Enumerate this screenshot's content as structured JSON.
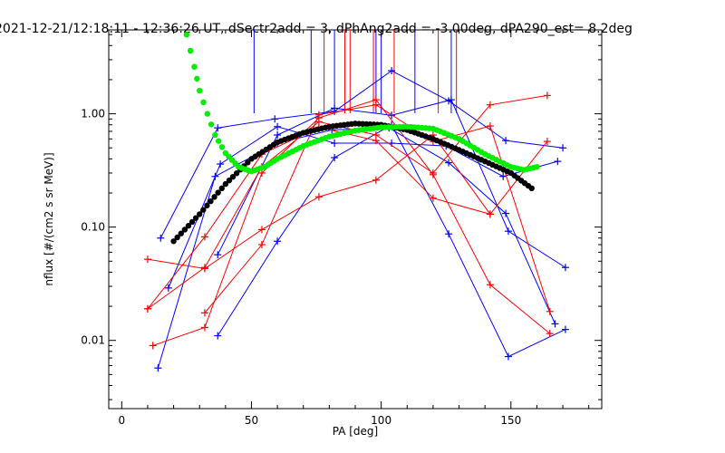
{
  "chart_data": {
    "type": "scatter",
    "title": "2021-12-21/12:18:11 - 12:36:26 UT, dSectr2add = 3, dPhAng2add = -3.00deg, dPA290_est=   8.2deg",
    "xlabel": "PA [deg]",
    "ylabel": "nflux [#/(cm2 s sr MeV)]",
    "xlim": [
      -5,
      185
    ],
    "ylim": [
      0.0025,
      5.5
    ],
    "yscale": "log",
    "grid": false,
    "x_ticks": [
      {
        "value": 0,
        "label": "0"
      },
      {
        "value": 50,
        "label": "50"
      },
      {
        "value": 100,
        "label": "100"
      },
      {
        "value": 150,
        "label": "150"
      }
    ],
    "y_ticks": [
      {
        "value": 0.01,
        "label": "0.01"
      },
      {
        "value": 0.1,
        "label": "0.10"
      },
      {
        "value": 1,
        "label": "1.00"
      }
    ],
    "colors": {
      "blue": "#0000ff",
      "red": "#ff0000",
      "black": "#000000",
      "green": "#00ee00"
    },
    "series": [
      {
        "color": "blue",
        "kind": "line-plus",
        "x": [
          15,
          37,
          59,
          82,
          104,
          126,
          148,
          170
        ],
        "y": [
          0.08,
          0.75,
          0.9,
          1.05,
          2.4,
          1.3,
          0.58,
          0.5
        ]
      },
      {
        "color": "blue",
        "kind": "line-plus",
        "x": [
          18,
          38,
          60,
          82,
          104,
          125,
          147,
          168
        ],
        "y": [
          0.029,
          0.36,
          0.77,
          0.55,
          0.55,
          0.52,
          0.28,
          0.38
        ]
      },
      {
        "color": "blue",
        "kind": "line-plus",
        "x": [
          14,
          36,
          60,
          81,
          103,
          126,
          148,
          167
        ],
        "y": [
          0.0057,
          0.28,
          0.55,
          0.72,
          0.75,
          0.37,
          0.132,
          0.014
        ]
      },
      {
        "color": "blue",
        "kind": "line-plus",
        "x": [
          37,
          60,
          82,
          104,
          126,
          149,
          171
        ],
        "y": [
          0.011,
          0.075,
          0.41,
          0.8,
          0.087,
          0.0072,
          0.0125
        ]
      },
      {
        "color": "blue",
        "kind": "line-plus",
        "x": [
          37,
          60,
          82,
          104,
          127,
          149,
          171
        ],
        "y": [
          0.057,
          0.65,
          1.12,
          0.97,
          1.33,
          0.092,
          0.044
        ]
      },
      {
        "color": "red",
        "kind": "line-plus",
        "x": [
          10,
          32,
          54,
          76,
          98,
          120,
          142,
          164
        ],
        "y": [
          0.019,
          0.044,
          0.34,
          0.85,
          0.65,
          0.3,
          1.2,
          1.45
        ]
      },
      {
        "color": "red",
        "kind": "line-plus",
        "x": [
          10,
          32,
          54,
          76,
          98,
          120,
          142,
          164
        ],
        "y": [
          0.019,
          0.082,
          0.44,
          0.76,
          0.58,
          0.18,
          0.13,
          0.57
        ]
      },
      {
        "color": "red",
        "kind": "line-plus",
        "x": [
          12,
          32,
          54,
          76,
          98,
          120,
          142,
          165
        ],
        "y": [
          0.009,
          0.013,
          0.3,
          0.92,
          1.33,
          0.29,
          0.031,
          0.0115
        ]
      },
      {
        "color": "red",
        "kind": "line-plus",
        "x": [
          32,
          54,
          76,
          98,
          120,
          142,
          165
        ],
        "y": [
          0.0175,
          0.07,
          0.98,
          1.2,
          0.57,
          0.78,
          0.018
        ]
      },
      {
        "color": "red",
        "kind": "line-plus",
        "x": [
          10,
          32,
          54,
          76,
          98,
          120,
          142
        ],
        "y": [
          0.052,
          0.043,
          0.095,
          0.185,
          0.26,
          0.65,
          0.13
        ]
      },
      {
        "color": "black",
        "kind": "dots",
        "x": [
          20,
          30,
          40,
          50,
          60,
          70,
          80,
          90,
          100,
          110,
          120,
          130,
          140,
          150,
          158
        ],
        "y": [
          0.075,
          0.13,
          0.24,
          0.4,
          0.56,
          0.68,
          0.77,
          0.82,
          0.8,
          0.72,
          0.6,
          0.48,
          0.38,
          0.3,
          0.22
        ]
      },
      {
        "color": "green",
        "kind": "dots",
        "x": [
          25,
          28,
          30,
          33,
          36,
          40,
          45,
          50,
          55,
          60,
          70,
          80,
          90,
          100,
          110,
          120,
          130,
          140,
          150,
          155,
          160
        ],
        "y": [
          5.0,
          2.6,
          1.6,
          1.0,
          0.65,
          0.45,
          0.34,
          0.31,
          0.34,
          0.4,
          0.52,
          0.63,
          0.71,
          0.76,
          0.77,
          0.74,
          0.6,
          0.44,
          0.34,
          0.32,
          0.34
        ]
      }
    ],
    "vertical_markers": [
      {
        "color": "blue",
        "x": [
          51,
          73,
          82,
          98,
          100,
          113,
          127
        ]
      },
      {
        "color": "red",
        "x": [
          78,
          86,
          88,
          97,
          105,
          122,
          129
        ]
      }
    ]
  }
}
